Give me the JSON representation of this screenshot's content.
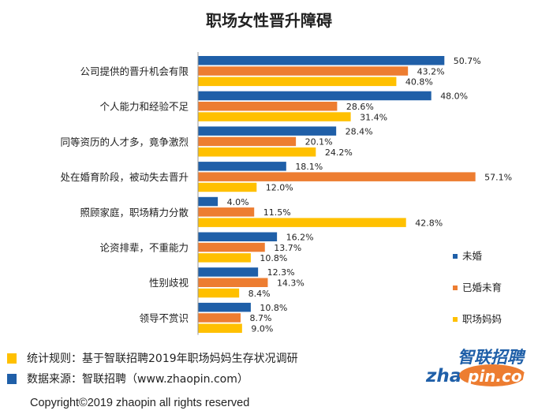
{
  "chart_data": {
    "type": "bar",
    "orientation": "horizontal",
    "title": "职场女性晋升障碍",
    "categories": [
      "公司提供的晋升机会有限",
      "个人能力和经验不足",
      "同等资历的人才多，竟争激烈",
      "处在婚育阶段，被动失去晋升",
      "照顾家庭，职场精力分散",
      "论资排辈，不重能力",
      "性别歧视",
      "领导不赏识"
    ],
    "series": [
      {
        "name": "未婚",
        "color": "#1f5fa8",
        "values": [
          50.7,
          48.0,
          28.4,
          18.1,
          4.0,
          16.2,
          12.3,
          10.8
        ]
      },
      {
        "name": "已婚未育",
        "color": "#ed7d31",
        "values": [
          43.2,
          28.6,
          20.1,
          57.1,
          11.5,
          13.7,
          14.3,
          8.7
        ]
      },
      {
        "name": "职场妈妈",
        "color": "#ffc000",
        "values": [
          40.8,
          31.4,
          24.2,
          12.0,
          42.8,
          10.8,
          8.4,
          9.0
        ]
      }
    ],
    "value_suffix": "%",
    "legend_position": "bottom-right",
    "grid": false
  },
  "footer": {
    "rule_text": "统计规则：基于智联招聘2019年职场妈妈生存状况调研",
    "rule_color": "#ffc000",
    "source_text": "数据来源：智联招聘（www.zhaopin.com）",
    "source_color": "#1f5fa8",
    "copyright": "Copyright©2019 zhaopin all rights reserved"
  },
  "logo": {
    "cn": "智联招聘",
    "en_prefix": "zhao",
    "en_suffix": "pin.com",
    "cn_color": "#1f5fa8",
    "en_color": "#1f5fa8",
    "pin_color": "#ffffff",
    "pin_bg": "#ed7d31"
  }
}
